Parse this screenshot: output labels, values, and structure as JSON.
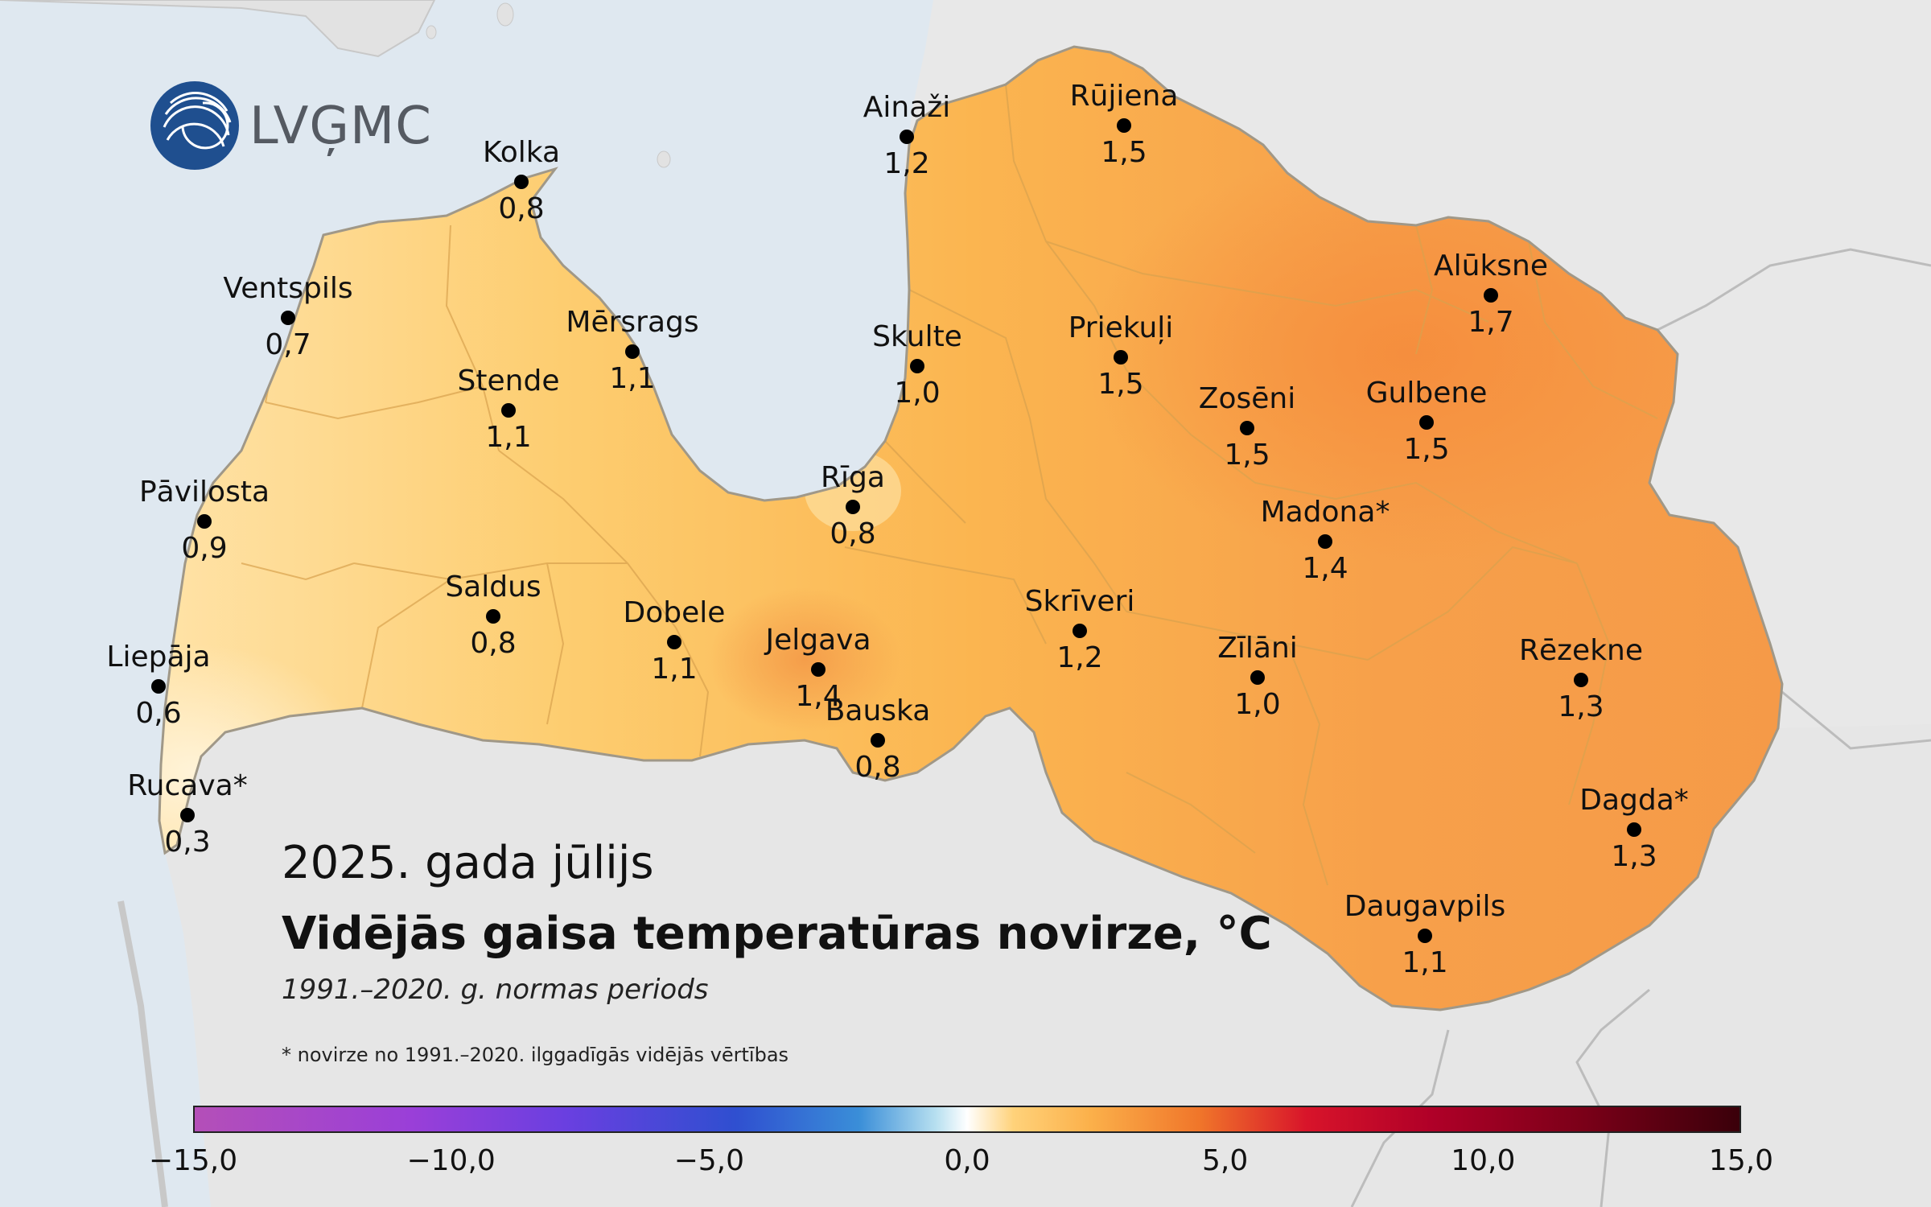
{
  "logo": {
    "text": "LVĢMC",
    "icon": "lvgmc-globe-icon",
    "color": "#1f4f8f"
  },
  "title": {
    "period": "2025. gada jūlijs",
    "main": "Vidējās gaisa temperatūras novirze, °C",
    "normal": "1991.–2020. g. normas periods",
    "footnote": "* novirze no 1991.–2020. ilggadīgās vidējās vērtības"
  },
  "colorbar": {
    "min": -15.0,
    "max": 15.0,
    "ticks": [
      "−15,0",
      "−10,0",
      "−5,0",
      "0,0",
      "5,0",
      "10,0",
      "15,0"
    ]
  },
  "stations": [
    {
      "name": "Ainaži",
      "value": "1,2"
    },
    {
      "name": "Rūjiena",
      "value": "1,5"
    },
    {
      "name": "Kolka",
      "value": "0,8"
    },
    {
      "name": "Ventspils",
      "value": "0,7"
    },
    {
      "name": "Mērsrags",
      "value": "1,1"
    },
    {
      "name": "Stende",
      "value": "1,1"
    },
    {
      "name": "Skulte",
      "value": "1,0"
    },
    {
      "name": "Priekuļi",
      "value": "1,5"
    },
    {
      "name": "Alūksne",
      "value": "1,7"
    },
    {
      "name": "Zosēni",
      "value": "1,5"
    },
    {
      "name": "Gulbene",
      "value": "1,5"
    },
    {
      "name": "Pāvilosta",
      "value": "0,9"
    },
    {
      "name": "Rīga",
      "value": "0,8"
    },
    {
      "name": "Madona*",
      "value": "1,4"
    },
    {
      "name": "Saldus",
      "value": "0,8"
    },
    {
      "name": "Dobele",
      "value": "1,1"
    },
    {
      "name": "Skrīveri",
      "value": "1,2"
    },
    {
      "name": "Jelgava",
      "value": "1,4"
    },
    {
      "name": "Zīlāni",
      "value": "1,0"
    },
    {
      "name": "Rēzekne",
      "value": "1,3"
    },
    {
      "name": "Liepāja",
      "value": "0,6"
    },
    {
      "name": "Bauska",
      "value": "0,8"
    },
    {
      "name": "Rucava*",
      "value": "0,3"
    },
    {
      "name": "Dagda*",
      "value": "1,3"
    },
    {
      "name": "Daugavpils",
      "value": "1,1"
    }
  ]
}
